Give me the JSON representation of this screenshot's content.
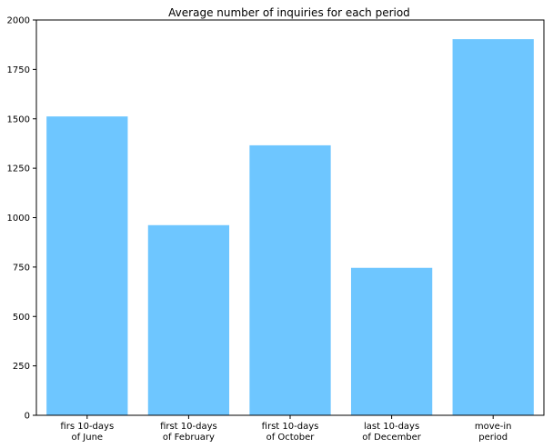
{
  "chart_data": {
    "type": "bar",
    "title": "Average number of inquiries for each period",
    "xlabel": "",
    "ylabel": "",
    "categories": [
      [
        "firs 10-days",
        "of June"
      ],
      [
        "first 10-days",
        "of February"
      ],
      [
        "first 10-days",
        "of October"
      ],
      [
        "last 10-days",
        "of December"
      ],
      [
        "move-in",
        "period"
      ]
    ],
    "values": [
      1512,
      962,
      1366,
      746,
      1903
    ],
    "ylim": [
      0,
      2000
    ],
    "yticks": [
      0,
      250,
      500,
      750,
      1000,
      1250,
      1500,
      1750,
      2000
    ],
    "bar_color": "#6ec6ff",
    "grid": false,
    "legend": "none"
  }
}
